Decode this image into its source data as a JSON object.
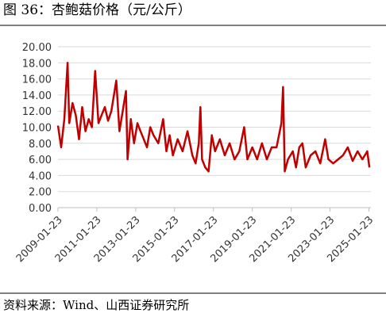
{
  "chart_data": {
    "type": "line",
    "title": "图 36：杏鲍菇价格（元/公斤）",
    "source": "资料来源：Wind、山西证券研究所",
    "x": [
      "2009-01-23",
      "2009-03-23",
      "2009-05-23",
      "2009-07-23",
      "2009-08-23",
      "2009-10-23",
      "2009-12-23",
      "2010-02-23",
      "2010-04-23",
      "2010-06-23",
      "2010-08-23",
      "2010-10-23",
      "2010-12-23",
      "2011-02-23",
      "2011-04-23",
      "2011-06-23",
      "2011-08-23",
      "2011-10-23",
      "2012-01-23",
      "2012-03-23",
      "2012-05-23",
      "2012-07-23",
      "2012-08-23",
      "2012-10-23",
      "2012-12-23",
      "2013-02-23",
      "2013-04-23",
      "2013-06-23",
      "2013-08-23",
      "2013-10-23",
      "2013-12-23",
      "2014-03-23",
      "2014-06-23",
      "2014-08-23",
      "2014-10-23",
      "2014-12-23",
      "2015-03-23",
      "2015-06-23",
      "2015-09-23",
      "2015-12-23",
      "2016-02-23",
      "2016-04-23",
      "2016-05-23",
      "2016-06-23",
      "2016-08-23",
      "2016-10-23",
      "2016-12-23",
      "2017-02-23",
      "2017-05-23",
      "2017-08-23",
      "2017-11-23",
      "2018-02-23",
      "2018-05-23",
      "2018-08-23",
      "2018-10-23",
      "2019-01-23",
      "2019-04-23",
      "2019-07-23",
      "2019-10-23",
      "2020-01-23",
      "2020-04-23",
      "2020-07-23",
      "2020-08-23",
      "2020-09-23",
      "2020-11-23",
      "2021-02-23",
      "2021-04-23",
      "2021-06-23",
      "2021-08-23",
      "2021-10-23",
      "2022-01-23",
      "2022-04-23",
      "2022-07-23",
      "2022-10-23",
      "2022-12-23",
      "2023-03-23",
      "2023-06-23",
      "2023-09-23",
      "2023-12-23",
      "2024-03-23",
      "2024-06-23",
      "2024-09-23",
      "2024-12-23",
      "2025-02-01"
    ],
    "series": [
      {
        "name": "杏鲍菇价格",
        "color": "#c00000",
        "values": [
          10.2,
          7.5,
          11.0,
          18.0,
          10.5,
          13.0,
          11.5,
          8.5,
          12.5,
          9.5,
          11.0,
          10.0,
          17.0,
          10.5,
          11.5,
          12.5,
          10.8,
          12.0,
          15.8,
          9.5,
          12.0,
          14.5,
          6.0,
          11.0,
          8.0,
          10.5,
          9.5,
          8.5,
          7.5,
          10.0,
          9.0,
          8.0,
          11.0,
          7.0,
          9.0,
          6.5,
          8.5,
          7.0,
          9.5,
          6.5,
          5.5,
          8.0,
          12.5,
          6.0,
          5.0,
          4.5,
          9.0,
          7.0,
          8.5,
          6.5,
          8.0,
          6.0,
          7.0,
          10.0,
          6.0,
          7.5,
          6.0,
          8.0,
          6.0,
          7.5,
          7.5,
          10.5,
          15.0,
          4.5,
          6.0,
          7.0,
          5.0,
          7.5,
          8.0,
          5.0,
          6.5,
          7.0,
          5.5,
          8.5,
          6.0,
          5.5,
          6.0,
          6.5,
          7.5,
          5.8,
          7.0,
          6.0,
          7.0,
          5.0
        ]
      }
    ],
    "xlim": [
      "2009-01-23",
      "2025-03-01"
    ],
    "xticks": [
      "2009-01-23",
      "2011-01-23",
      "2013-01-23",
      "2015-01-23",
      "2017-01-23",
      "2019-01-23",
      "2021-01-23",
      "2023-01-23",
      "2025-01-23"
    ],
    "ylim": [
      0,
      20
    ],
    "yticks": [
      {
        "value": 0,
        "label": "0.00"
      },
      {
        "value": 2,
        "label": "2.00"
      },
      {
        "value": 4,
        "label": "4.00"
      },
      {
        "value": 6,
        "label": "6.00"
      },
      {
        "value": 8,
        "label": "8.00"
      },
      {
        "value": 10,
        "label": "10.00"
      },
      {
        "value": 12,
        "label": "12.00"
      },
      {
        "value": 14,
        "label": "14.00"
      },
      {
        "value": 16,
        "label": "16.00"
      },
      {
        "value": 18,
        "label": "18.00"
      },
      {
        "value": 20,
        "label": "20.00"
      }
    ],
    "grid": true
  }
}
